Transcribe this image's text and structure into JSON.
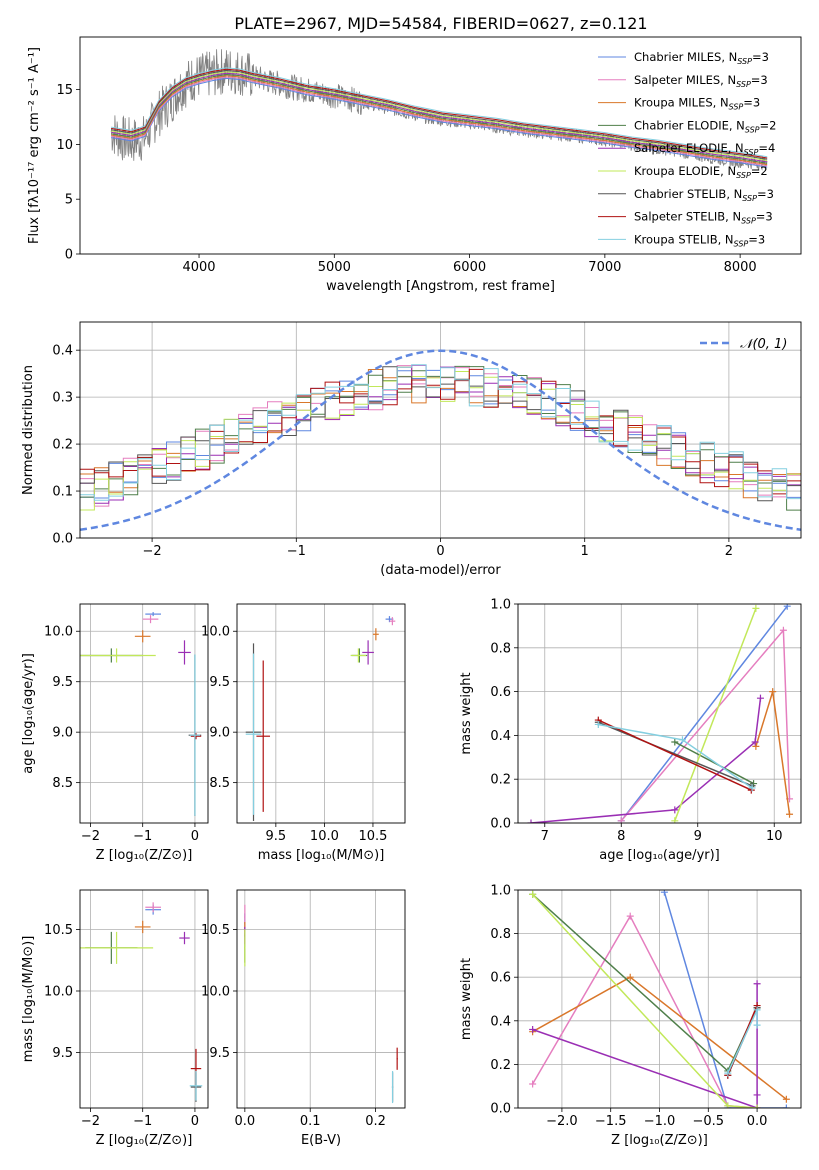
{
  "figure": {
    "title": "PLATE=2967, MJD=54584, FIBERID=0627, z=0.121"
  },
  "colors": {
    "chabrier_miles": "#5f87e0",
    "salpeter_miles": "#e57ebf",
    "kroupa_miles": "#d9772a",
    "chabrier_elodie": "#4f7f4a",
    "salpeter_elodie": "#9a2fb4",
    "kroupa_elodie": "#c2e85a",
    "chabrier_stelib": "#555555",
    "salpeter_stelib": "#b01212",
    "kroupa_stelib": "#84cfe0",
    "data": "#808080",
    "normal": "#5f87e0"
  },
  "legend_spectrum": [
    {
      "key": "chabrier_miles",
      "label": "Chabrier MILES, N",
      "sub": "SSP",
      "suffix": "=3"
    },
    {
      "key": "salpeter_miles",
      "label": "Salpeter MILES, N",
      "sub": "SSP",
      "suffix": "=3"
    },
    {
      "key": "kroupa_miles",
      "label": "Kroupa MILES, N",
      "sub": "SSP",
      "suffix": "=3"
    },
    {
      "key": "chabrier_elodie",
      "label": "Chabrier ELODIE, N",
      "sub": "SSP",
      "suffix": "=2"
    },
    {
      "key": "salpeter_elodie",
      "label": "Salpeter ELODIE, N",
      "sub": "SSP",
      "suffix": "=4"
    },
    {
      "key": "kroupa_elodie",
      "label": "Kroupa ELODIE, N",
      "sub": "SSP",
      "suffix": "=2"
    },
    {
      "key": "chabrier_stelib",
      "label": "Chabrier STELIB, N",
      "sub": "SSP",
      "suffix": "=3"
    },
    {
      "key": "salpeter_stelib",
      "label": "Salpeter STELIB, N",
      "sub": "SSP",
      "suffix": "=3"
    },
    {
      "key": "kroupa_stelib",
      "label": "Kroupa STELIB, N",
      "sub": "SSP",
      "suffix": "=3"
    }
  ],
  "chart_data": [
    {
      "id": "spectrum",
      "type": "line",
      "xlabel": "wavelength [Angstrom, rest frame]",
      "ylabel": "Flux [fλ10⁻¹⁷ erg cm⁻² s⁻¹ A⁻¹]",
      "xlim": [
        3120,
        8450
      ],
      "ylim": [
        0,
        19.8
      ],
      "xticks": [
        4000,
        5000,
        6000,
        7000,
        8000
      ],
      "yticks": [
        0,
        5,
        10,
        15
      ],
      "grid": false,
      "legend": "top-right",
      "data_curve": {
        "x": [
          3350,
          3450,
          3500,
          3600,
          3700,
          3800,
          3850,
          3900,
          3950,
          4000,
          4100,
          4200,
          4300,
          4400,
          4500,
          4700,
          4900,
          5100,
          5300,
          5500,
          5700,
          5900,
          6100,
          6300,
          6500,
          6700,
          6900,
          7100,
          7300,
          7500,
          7700,
          7900,
          8100,
          8200
        ],
        "y": [
          11.2,
          10.4,
          10.3,
          10.6,
          12.8,
          14.1,
          15.0,
          15.5,
          16.0,
          16.2,
          16.4,
          16.8,
          16.6,
          16.2,
          15.8,
          15.2,
          14.7,
          14.2,
          13.6,
          13.0,
          12.4,
          12.1,
          11.8,
          11.4,
          11.1,
          10.9,
          10.6,
          10.2,
          9.8,
          9.5,
          9.0,
          8.6,
          8.3,
          8.3
        ]
      },
      "models": {
        "x": [
          3350,
          3500,
          3600,
          3700,
          3800,
          3900,
          4000,
          4100,
          4200,
          4300,
          4400,
          4600,
          4800,
          5000,
          5200,
          5400,
          5600,
          5800,
          6000,
          6200,
          6400,
          6600,
          6800,
          7000,
          7200,
          7400,
          7600,
          7800,
          8000,
          8200
        ],
        "y": [
          11.1,
          10.8,
          11.2,
          13.5,
          14.8,
          15.6,
          16.0,
          16.3,
          16.5,
          16.4,
          16.1,
          15.6,
          15.0,
          14.6,
          14.1,
          13.6,
          13.0,
          12.5,
          12.2,
          11.9,
          11.5,
          11.2,
          10.9,
          10.6,
          10.2,
          9.9,
          9.5,
          9.1,
          8.8,
          8.4
        ]
      }
    },
    {
      "id": "residuals",
      "type": "line",
      "xlabel": "(data-model)/error",
      "ylabel": "Normed distribution",
      "xlim": [
        -2.5,
        2.5
      ],
      "ylim": [
        0,
        0.46
      ],
      "xticks": [
        -2,
        -1,
        0,
        1,
        2
      ],
      "yticks": [
        0.0,
        0.1,
        0.2,
        0.3,
        0.4
      ],
      "grid": true,
      "legend": "top-right",
      "legend_label": "𝒩(0, 1)",
      "normal_curve": {
        "mu": 0,
        "sigma": 1
      }
    },
    {
      "id": "age_vs_z",
      "type": "scatter",
      "xlabel": "Z [log₁₀(Z/Z⊙)]",
      "ylabel": "age  [log₁₀(age/yr)]",
      "xlim": [
        -2.2,
        0.25
      ],
      "ylim": [
        8.1,
        10.27
      ],
      "xticks": [
        -2,
        -1,
        0
      ],
      "yticks": [
        8.5,
        9.0,
        9.5,
        10.0
      ],
      "grid": true,
      "points": [
        {
          "key": "chabrier_miles",
          "x": -0.8,
          "y": 10.17,
          "xerr": 0.15,
          "yerr": 0.02
        },
        {
          "key": "salpeter_miles",
          "x": -0.85,
          "y": 10.12,
          "xerr": 0.15,
          "yerr": 0.04
        },
        {
          "key": "kroupa_miles",
          "x": -1.0,
          "y": 9.95,
          "xerr": 0.15,
          "yerr": 0.06
        },
        {
          "key": "chabrier_elodie",
          "x": -1.6,
          "y": 9.76,
          "xerr": 0.6,
          "yerr": 0.07
        },
        {
          "key": "salpeter_elodie",
          "x": -0.2,
          "y": 9.79,
          "xerr": 0.12,
          "yerr": 0.12
        },
        {
          "key": "kroupa_elodie",
          "x": -1.5,
          "y": 9.76,
          "xerr": 0.75,
          "yerr": 0.07
        },
        {
          "key": "chabrier_stelib",
          "x": 0.0,
          "y": 8.97,
          "xerr": 0.12,
          "yerr": 0.8
        },
        {
          "key": "salpeter_stelib",
          "x": 0.02,
          "y": 8.96,
          "xerr": 0.1,
          "yerr": 0.03
        },
        {
          "key": "kroupa_stelib",
          "x": 0.0,
          "y": 8.97,
          "xerr": 0.1,
          "yerr": 0.8
        }
      ]
    },
    {
      "id": "age_vs_mass",
      "type": "scatter",
      "xlabel": "mass [log₁₀(M/M⊙)]",
      "ylabel": "",
      "xlim": [
        9.1,
        10.83
      ],
      "ylim": [
        8.1,
        10.27
      ],
      "xticks": [
        9.5,
        10.0,
        10.5
      ],
      "yticks": [
        8.5,
        9.0,
        9.5,
        10.0
      ],
      "grid": true,
      "points": [
        {
          "key": "chabrier_miles",
          "x": 10.67,
          "y": 10.12,
          "xerr": 0.04,
          "yerr": 0.03
        },
        {
          "key": "salpeter_miles",
          "x": 10.7,
          "y": 10.1,
          "xerr": 0.03,
          "yerr": 0.04
        },
        {
          "key": "kroupa_miles",
          "x": 10.53,
          "y": 9.97,
          "xerr": 0.03,
          "yerr": 0.06
        },
        {
          "key": "chabrier_elodie",
          "x": 10.36,
          "y": 9.76,
          "xerr": 0.08,
          "yerr": 0.07
        },
        {
          "key": "salpeter_elodie",
          "x": 10.45,
          "y": 9.79,
          "xerr": 0.06,
          "yerr": 0.12
        },
        {
          "key": "kroupa_elodie",
          "x": 10.35,
          "y": 9.76,
          "xerr": 0.08,
          "yerr": 0.07
        },
        {
          "key": "chabrier_stelib",
          "x": 9.27,
          "y": 9.0,
          "xerr": 0.08,
          "yerr": 0.88
        },
        {
          "key": "salpeter_stelib",
          "x": 9.37,
          "y": 8.96,
          "xerr": 0.07,
          "yerr": 0.75
        },
        {
          "key": "kroupa_stelib",
          "x": 9.27,
          "y": 8.98,
          "xerr": 0.08,
          "yerr": 0.8
        }
      ]
    },
    {
      "id": "weight_vs_age",
      "type": "line",
      "xlabel": "age  [log₁₀(age/yr)]",
      "ylabel": "mass weight",
      "xlim": [
        6.65,
        10.35
      ],
      "ylim": [
        0,
        1.0
      ],
      "xticks": [
        7,
        8,
        9,
        10
      ],
      "yticks": [
        0.0,
        0.2,
        0.4,
        0.6,
        0.8,
        1.0
      ],
      "grid": true,
      "series": [
        {
          "key": "chabrier_miles",
          "x": [
            8.0,
            10.17
          ],
          "y": [
            0.01,
            0.99
          ]
        },
        {
          "key": "salpeter_miles",
          "x": [
            8.0,
            10.12,
            10.2
          ],
          "y": [
            0.01,
            0.88,
            0.11
          ]
        },
        {
          "key": "kroupa_miles",
          "x": [
            9.76,
            9.98,
            10.2
          ],
          "y": [
            0.35,
            0.6,
            0.04
          ]
        },
        {
          "key": "chabrier_elodie",
          "x": [
            8.7,
            9.73
          ],
          "y": [
            0.37,
            0.18
          ]
        },
        {
          "key": "salpeter_elodie",
          "x": [
            6.82,
            8.7,
            9.75,
            9.82
          ],
          "y": [
            0.0,
            0.06,
            0.37,
            0.57
          ]
        },
        {
          "key": "kroupa_elodie",
          "x": [
            8.7,
            9.76
          ],
          "y": [
            0.01,
            0.98
          ]
        },
        {
          "key": "chabrier_stelib",
          "x": [
            7.7,
            9.71
          ],
          "y": [
            0.46,
            0.17
          ]
        },
        {
          "key": "salpeter_stelib",
          "x": [
            7.7,
            9.7
          ],
          "y": [
            0.47,
            0.15
          ]
        },
        {
          "key": "kroupa_stelib",
          "x": [
            7.7,
            8.8,
            9.71
          ],
          "y": [
            0.45,
            0.38,
            0.16
          ]
        }
      ]
    },
    {
      "id": "mass_vs_z",
      "type": "scatter",
      "xlabel": "Z [log₁₀(Z/Z⊙)]",
      "ylabel": "mass [log₁₀(M/M⊙)]",
      "xlim": [
        -2.2,
        0.25
      ],
      "ylim": [
        9.05,
        10.82
      ],
      "xticks": [
        -2,
        -1,
        0
      ],
      "yticks": [
        9.5,
        10.0,
        10.5
      ],
      "grid": true,
      "points": [
        {
          "key": "chabrier_miles",
          "x": -0.8,
          "y": 10.66,
          "xerr": 0.15,
          "yerr": 0.04
        },
        {
          "key": "salpeter_miles",
          "x": -0.8,
          "y": 10.68,
          "xerr": 0.15,
          "yerr": 0.04
        },
        {
          "key": "kroupa_miles",
          "x": -1.0,
          "y": 10.52,
          "xerr": 0.15,
          "yerr": 0.05
        },
        {
          "key": "chabrier_elodie",
          "x": -1.6,
          "y": 10.35,
          "xerr": 0.5,
          "yerr": 0.13
        },
        {
          "key": "salpeter_elodie",
          "x": -0.2,
          "y": 10.43,
          "xerr": 0.1,
          "yerr": 0.05
        },
        {
          "key": "kroupa_elodie",
          "x": -1.5,
          "y": 10.35,
          "xerr": 0.7,
          "yerr": 0.13
        },
        {
          "key": "chabrier_stelib",
          "x": 0.02,
          "y": 9.22,
          "xerr": 0.1,
          "yerr": 0.12
        },
        {
          "key": "salpeter_stelib",
          "x": 0.02,
          "y": 9.37,
          "xerr": 0.1,
          "yerr": 0.16
        },
        {
          "key": "kroupa_stelib",
          "x": 0.02,
          "y": 9.23,
          "xerr": 0.12,
          "yerr": 0.12
        }
      ]
    },
    {
      "id": "mass_vs_ebv",
      "type": "scatter",
      "xlabel": "E(B-V)",
      "ylabel": "",
      "xlim": [
        -0.012,
        0.245
      ],
      "ylim": [
        9.05,
        10.82
      ],
      "xticks": [
        0.0,
        0.1,
        0.2
      ],
      "yticks": [
        9.5,
        10.0,
        10.5
      ],
      "grid": true,
      "points": [
        {
          "key": "chabrier_miles",
          "x": 0.0,
          "y": 10.55,
          "xerr": 0.001,
          "yerr": 0.08
        },
        {
          "key": "salpeter_miles",
          "x": 0.0,
          "y": 10.6,
          "xerr": 0.001,
          "yerr": 0.1
        },
        {
          "key": "kroupa_miles",
          "x": 0.0,
          "y": 10.5,
          "xerr": 0.001,
          "yerr": 0.06
        },
        {
          "key": "chabrier_elodie",
          "x": 0.0,
          "y": 10.35,
          "xerr": 0.001,
          "yerr": 0.12
        },
        {
          "key": "salpeter_elodie",
          "x": 0.0,
          "y": 10.45,
          "xerr": 0.001,
          "yerr": 0.07
        },
        {
          "key": "kroupa_elodie",
          "x": 0.0,
          "y": 10.35,
          "xerr": 0.001,
          "yerr": 0.15
        },
        {
          "key": "chabrier_stelib",
          "x": 0.226,
          "y": 9.22,
          "xerr": 0.001,
          "yerr": 0.12
        },
        {
          "key": "salpeter_stelib",
          "x": 0.233,
          "y": 9.45,
          "xerr": 0.001,
          "yerr": 0.09
        },
        {
          "key": "kroupa_stelib",
          "x": 0.226,
          "y": 9.22,
          "xerr": 0.001,
          "yerr": 0.13
        }
      ]
    },
    {
      "id": "weight_vs_z",
      "type": "line",
      "xlabel": "Z [log₁₀(Z/Z⊙)]",
      "ylabel": "mass weight",
      "xlim": [
        -2.45,
        0.45
      ],
      "ylim": [
        0,
        1.0
      ],
      "xticks": [
        -2.0,
        -1.5,
        -1.0,
        -0.5,
        0.0
      ],
      "yticks": [
        0.0,
        0.2,
        0.4,
        0.6,
        0.8,
        1.0
      ],
      "grid": true,
      "series": [
        {
          "key": "chabrier_miles",
          "x": [
            -0.95,
            -0.3,
            0.3
          ],
          "y": [
            0.99,
            0.0,
            0.0
          ]
        },
        {
          "key": "salpeter_miles",
          "x": [
            -2.3,
            -1.3,
            -0.3,
            0.0
          ],
          "y": [
            0.11,
            0.88,
            0.01,
            0.0
          ]
        },
        {
          "key": "kroupa_miles",
          "x": [
            -2.3,
            -1.3,
            0.3
          ],
          "y": [
            0.35,
            0.6,
            0.04
          ]
        },
        {
          "key": "chabrier_elodie",
          "x": [
            -2.3,
            -0.3,
            0.0
          ],
          "y": [
            0.98,
            0.17,
            0.46
          ]
        },
        {
          "key": "salpeter_elodie",
          "x": [
            -2.3,
            0.0,
            0.0,
            0.0
          ],
          "y": [
            0.36,
            0.0,
            0.06,
            0.57
          ]
        },
        {
          "key": "kroupa_elodie",
          "x": [
            -2.3,
            -0.3,
            0.0
          ],
          "y": [
            0.98,
            0.01,
            0.0
          ]
        },
        {
          "key": "chabrier_stelib",
          "x": [
            -0.3,
            0.0
          ],
          "y": [
            0.15,
            0.46
          ]
        },
        {
          "key": "salpeter_stelib",
          "x": [
            -0.3,
            0.0
          ],
          "y": [
            0.15,
            0.47
          ]
        },
        {
          "key": "kroupa_stelib",
          "x": [
            -0.3,
            0.0,
            0.0
          ],
          "y": [
            0.16,
            0.45,
            0.38
          ]
        }
      ]
    }
  ]
}
